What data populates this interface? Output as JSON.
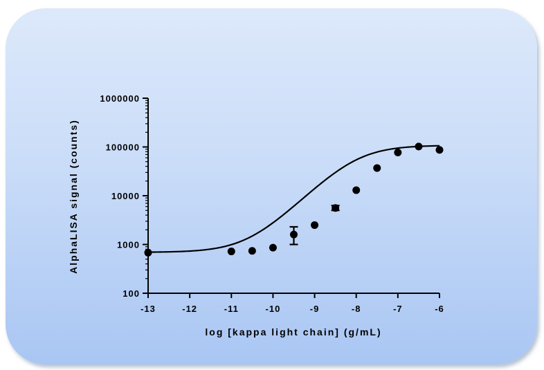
{
  "chart_data": {
    "type": "scatter",
    "title": "",
    "xlabel": "log [kappa light chain] (g/mL)",
    "ylabel": "AlphaLISA signal (counts)",
    "xlim": [
      -13,
      -6
    ],
    "ylim": [
      100,
      1000000
    ],
    "y_scale": "log",
    "grid": false,
    "x_ticks": [
      -13,
      -12,
      -11,
      -10,
      -9,
      -8,
      -7,
      -6
    ],
    "x_tick_labels": [
      "-13",
      "-12",
      "-11",
      "-10",
      "-9",
      "-8",
      "-7",
      "-6"
    ],
    "y_ticks": [
      100,
      1000,
      10000,
      100000,
      1000000
    ],
    "y_tick_labels": [
      "100",
      "1000",
      "10000",
      "100000",
      "1000000"
    ],
    "series": [
      {
        "points": [
          {
            "x": -13,
            "y": 680
          },
          {
            "x": -11,
            "y": 720
          },
          {
            "x": -10.5,
            "y": 740
          },
          {
            "x": -10,
            "y": 860
          },
          {
            "x": -9.5,
            "y": 1600,
            "y_low": 1000,
            "y_high": 2300
          },
          {
            "x": -9,
            "y": 2500
          },
          {
            "x": -8.5,
            "y": 5600,
            "y_low": 5000,
            "y_high": 6300
          },
          {
            "x": -8,
            "y": 13000
          },
          {
            "x": -7.5,
            "y": 37000
          },
          {
            "x": -7,
            "y": 77000
          },
          {
            "x": -6.5,
            "y": 102000
          },
          {
            "x": -6,
            "y": 87000
          }
        ],
        "fit": {
          "model": "sigmoidal",
          "bottom": 690,
          "top": 108000,
          "log_ec50": -8.0,
          "hill_slope": 0.85
        },
        "color": "#000000"
      }
    ]
  }
}
